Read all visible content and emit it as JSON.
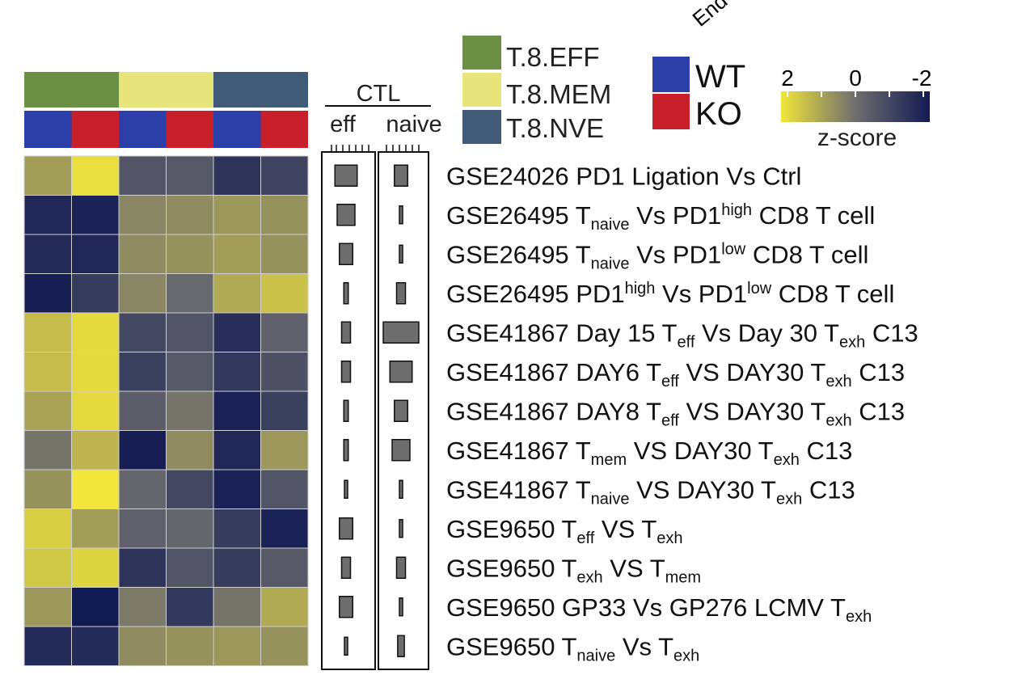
{
  "chart_data": {
    "type": "heatmap",
    "top_corner_label": "End",
    "groups": [
      {
        "name": "T.8.EFF",
        "color": "#6a8f45"
      },
      {
        "name": "T.8.MEM",
        "color": "#e6e47a"
      },
      {
        "name": "T.8.NVE",
        "color": "#415a78"
      }
    ],
    "genotypes": [
      {
        "name": "WT",
        "color": "#2c3ea8"
      },
      {
        "name": "KO",
        "color": "#c8202a"
      }
    ],
    "column_group_index": [
      0,
      0,
      1,
      1,
      2,
      2
    ],
    "column_genotype_index": [
      0,
      1,
      0,
      1,
      0,
      1
    ],
    "colorbar": {
      "title": "z-score",
      "ticks": [
        "2",
        "0",
        "-2"
      ],
      "range": [
        2,
        -2
      ],
      "colors": [
        "#f1e63a",
        "#6e6e6e",
        "#121a52"
      ]
    },
    "ctl": {
      "title": "CTL",
      "columns": [
        "eff",
        "naive"
      ]
    },
    "rows": [
      {
        "segments": [
          {
            "t": "GSE24026 PD1 Ligation Vs Ctrl"
          }
        ]
      },
      {
        "segments": [
          {
            "t": "GSE26495 T"
          },
          {
            "t": "naive",
            "s": "sub"
          },
          {
            "t": " Vs PD1"
          },
          {
            "t": "high",
            "s": "sup"
          },
          {
            "t": " CD8 T cell"
          }
        ]
      },
      {
        "segments": [
          {
            "t": "GSE26495 T"
          },
          {
            "t": "naive",
            "s": "sub"
          },
          {
            "t": " Vs PD1"
          },
          {
            "t": "low",
            "s": "sup"
          },
          {
            "t": " CD8 T cell"
          }
        ]
      },
      {
        "segments": [
          {
            "t": "GSE26495 PD1"
          },
          {
            "t": "high",
            "s": "sup"
          },
          {
            "t": " Vs PD1"
          },
          {
            "t": "low",
            "s": "sup"
          },
          {
            "t": " CD8 T cell"
          }
        ]
      },
      {
        "segments": [
          {
            "t": "GSE41867 Day 15 T"
          },
          {
            "t": "eff",
            "s": "sub"
          },
          {
            "t": " Vs Day 30 T"
          },
          {
            "t": "exh",
            "s": "sub"
          },
          {
            "t": " C13"
          }
        ]
      },
      {
        "segments": [
          {
            "t": "GSE41867 DAY6 T"
          },
          {
            "t": "eff",
            "s": "sub"
          },
          {
            "t": " VS DAY30 T"
          },
          {
            "t": "exh",
            "s": "sub"
          },
          {
            "t": " C13"
          }
        ]
      },
      {
        "segments": [
          {
            "t": "GSE41867 DAY8 T"
          },
          {
            "t": "eff",
            "s": "sub"
          },
          {
            "t": " VS DAY30 T"
          },
          {
            "t": "exh",
            "s": "sub"
          },
          {
            "t": " C13"
          }
        ]
      },
      {
        "segments": [
          {
            "t": "GSE41867 T"
          },
          {
            "t": "mem",
            "s": "sub"
          },
          {
            "t": " VS DAY30 T"
          },
          {
            "t": "exh",
            "s": "sub"
          },
          {
            "t": " C13"
          }
        ]
      },
      {
        "segments": [
          {
            "t": "GSE41867 T"
          },
          {
            "t": "naive",
            "s": "sub"
          },
          {
            "t": " VS DAY30 T"
          },
          {
            "t": "exh",
            "s": "sub"
          },
          {
            "t": " C13"
          }
        ]
      },
      {
        "segments": [
          {
            "t": "GSE9650 T"
          },
          {
            "t": "eff",
            "s": "sub"
          },
          {
            "t": " VS T"
          },
          {
            "t": "exh",
            "s": "sub"
          }
        ]
      },
      {
        "segments": [
          {
            "t": "GSE9650 T"
          },
          {
            "t": "exh",
            "s": "sub"
          },
          {
            "t": " VS T"
          },
          {
            "t": "mem",
            "s": "sub"
          }
        ]
      },
      {
        "segments": [
          {
            "t": "GSE9650 GP33 Vs GP276 LCMV T"
          },
          {
            "t": "exh",
            "s": "sub"
          }
        ]
      },
      {
        "segments": [
          {
            "t": "GSE9650 T"
          },
          {
            "t": "naive",
            "s": "sub"
          },
          {
            "t": " Vs T"
          },
          {
            "t": "exh",
            "s": "sub"
          }
        ]
      }
    ],
    "zscores": [
      [
        0.8,
        1.9,
        -0.6,
        -0.5,
        -1.4,
        -1.0
      ],
      [
        -1.7,
        -1.8,
        0.4,
        0.5,
        0.7,
        0.6
      ],
      [
        -1.6,
        -1.7,
        0.5,
        0.6,
        0.8,
        0.6
      ],
      [
        -1.9,
        -1.2,
        0.4,
        -0.1,
        1.0,
        1.4
      ],
      [
        1.3,
        1.8,
        -0.9,
        -0.6,
        -1.5,
        -0.3
      ],
      [
        1.3,
        1.8,
        -1.1,
        -0.5,
        -1.3,
        -0.7
      ],
      [
        0.9,
        1.8,
        -0.4,
        0.1,
        -1.8,
        -1.1
      ],
      [
        0.1,
        1.2,
        -1.9,
        0.5,
        -1.7,
        0.7
      ],
      [
        0.6,
        2.0,
        -0.2,
        -0.9,
        -1.8,
        -0.6
      ],
      [
        1.6,
        0.8,
        -0.3,
        -0.2,
        -1.2,
        -1.8
      ],
      [
        1.5,
        1.7,
        -1.4,
        -0.6,
        -1.2,
        -0.5
      ],
      [
        0.7,
        -2.0,
        0.2,
        -1.3,
        0.1,
        1.0
      ],
      [
        -1.6,
        -1.6,
        0.5,
        0.6,
        0.7,
        0.6
      ]
    ],
    "ctl_bars": {
      "eff": [
        5,
        4,
        3,
        1,
        2,
        2,
        1,
        1,
        0.6,
        3,
        2,
        3,
        0.6
      ],
      "naive": [
        3,
        0.5,
        0.5,
        2,
        8,
        5,
        3,
        4,
        0.5,
        0.5,
        2,
        0.5,
        1.5
      ]
    }
  }
}
